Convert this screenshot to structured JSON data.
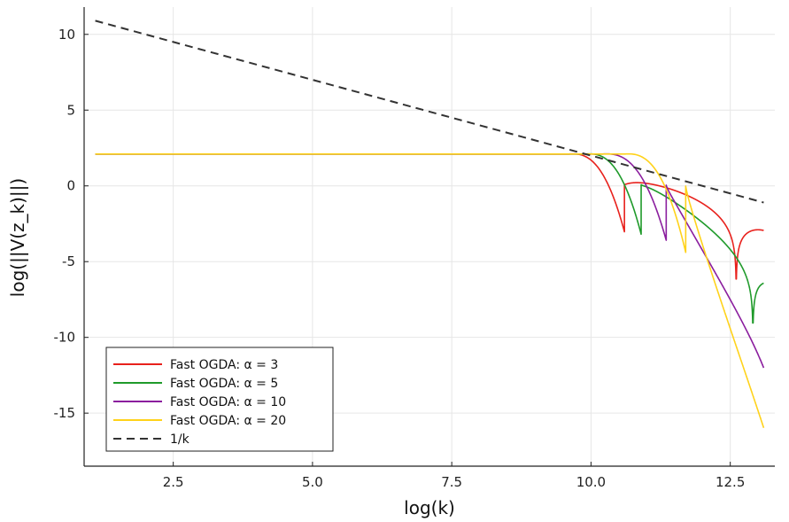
{
  "chart_data": {
    "type": "line",
    "xlabel": "log(k)",
    "ylabel": "log(||V(z_k)||)",
    "xlim": [
      0.9,
      13.3
    ],
    "ylim": [
      -18.5,
      11.8
    ],
    "xticks": [
      2.5,
      5.0,
      7.5,
      10.0,
      12.5
    ],
    "xtick_labels": [
      "2.5",
      "5.0",
      "7.5",
      "10.0",
      "12.5"
    ],
    "yticks": [
      10,
      5,
      0,
      -5,
      -10,
      -15
    ],
    "ytick_labels": [
      "10",
      "5",
      "0",
      "-5",
      "-10",
      "-15"
    ],
    "grid": true,
    "legend_position": "bottom-left",
    "series": [
      {
        "name": "Fast OGDA: α = 3",
        "color": "#e8211c",
        "alpha": 3,
        "plateau": 2.1,
        "drop_start": 9.6,
        "t0": 10.6,
        "end_level": -3.5,
        "shallow_tail": -2.6,
        "oscillating": true
      },
      {
        "name": "Fast OGDA: α = 5",
        "color": "#1f9a2a",
        "alpha": 5,
        "plateau": 2.1,
        "drop_start": 9.9,
        "t0": 10.9,
        "end_level": -6.3,
        "shallow_tail": -5.0,
        "oscillating": true
      },
      {
        "name": "Fast OGDA: α = 10",
        "color": "#8b1e9e",
        "alpha": 10,
        "plateau": 2.1,
        "drop_start": 10.2,
        "t0": 11.35,
        "end_level": -12.0,
        "shallow_tail": -9.5,
        "oscillating": true
      },
      {
        "name": "Fast OGDA: α = 20",
        "color": "#ffd21a",
        "alpha": 20,
        "plateau": 2.1,
        "drop_start": 10.6,
        "t0": 11.7,
        "end_level": -16.4,
        "shallow_tail": -13.5,
        "oscillating": true
      },
      {
        "name": "1/k",
        "color": "#333333",
        "dashed": true,
        "x": [
          1.1,
          13.1
        ],
        "y": [
          10.9,
          -1.1
        ]
      }
    ]
  }
}
